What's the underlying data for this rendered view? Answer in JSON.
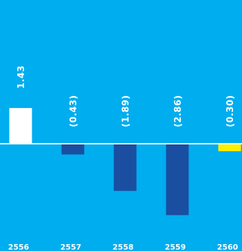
{
  "chart_data": {
    "type": "bar",
    "title": "",
    "xlabel": "",
    "ylabel": "",
    "categories": [
      "2556",
      "2557",
      "2558",
      "2559",
      "2560"
    ],
    "values": [
      1.43,
      -0.43,
      -1.89,
      -2.86,
      -0.3
    ],
    "value_labels": [
      "1.43",
      "(0.43)",
      "(1.89)",
      "(2.86)",
      "(0.30)"
    ],
    "bar_colors": [
      "#ffffff",
      "#1a4ea1",
      "#1a4ea1",
      "#1a4ea1",
      "#ffee00"
    ],
    "ylim": [
      -4.5,
      4.5
    ],
    "grid": false,
    "legend": "none",
    "background": "#00adef",
    "baseline_color": "#ffffff",
    "label_color": "#ffffff"
  }
}
